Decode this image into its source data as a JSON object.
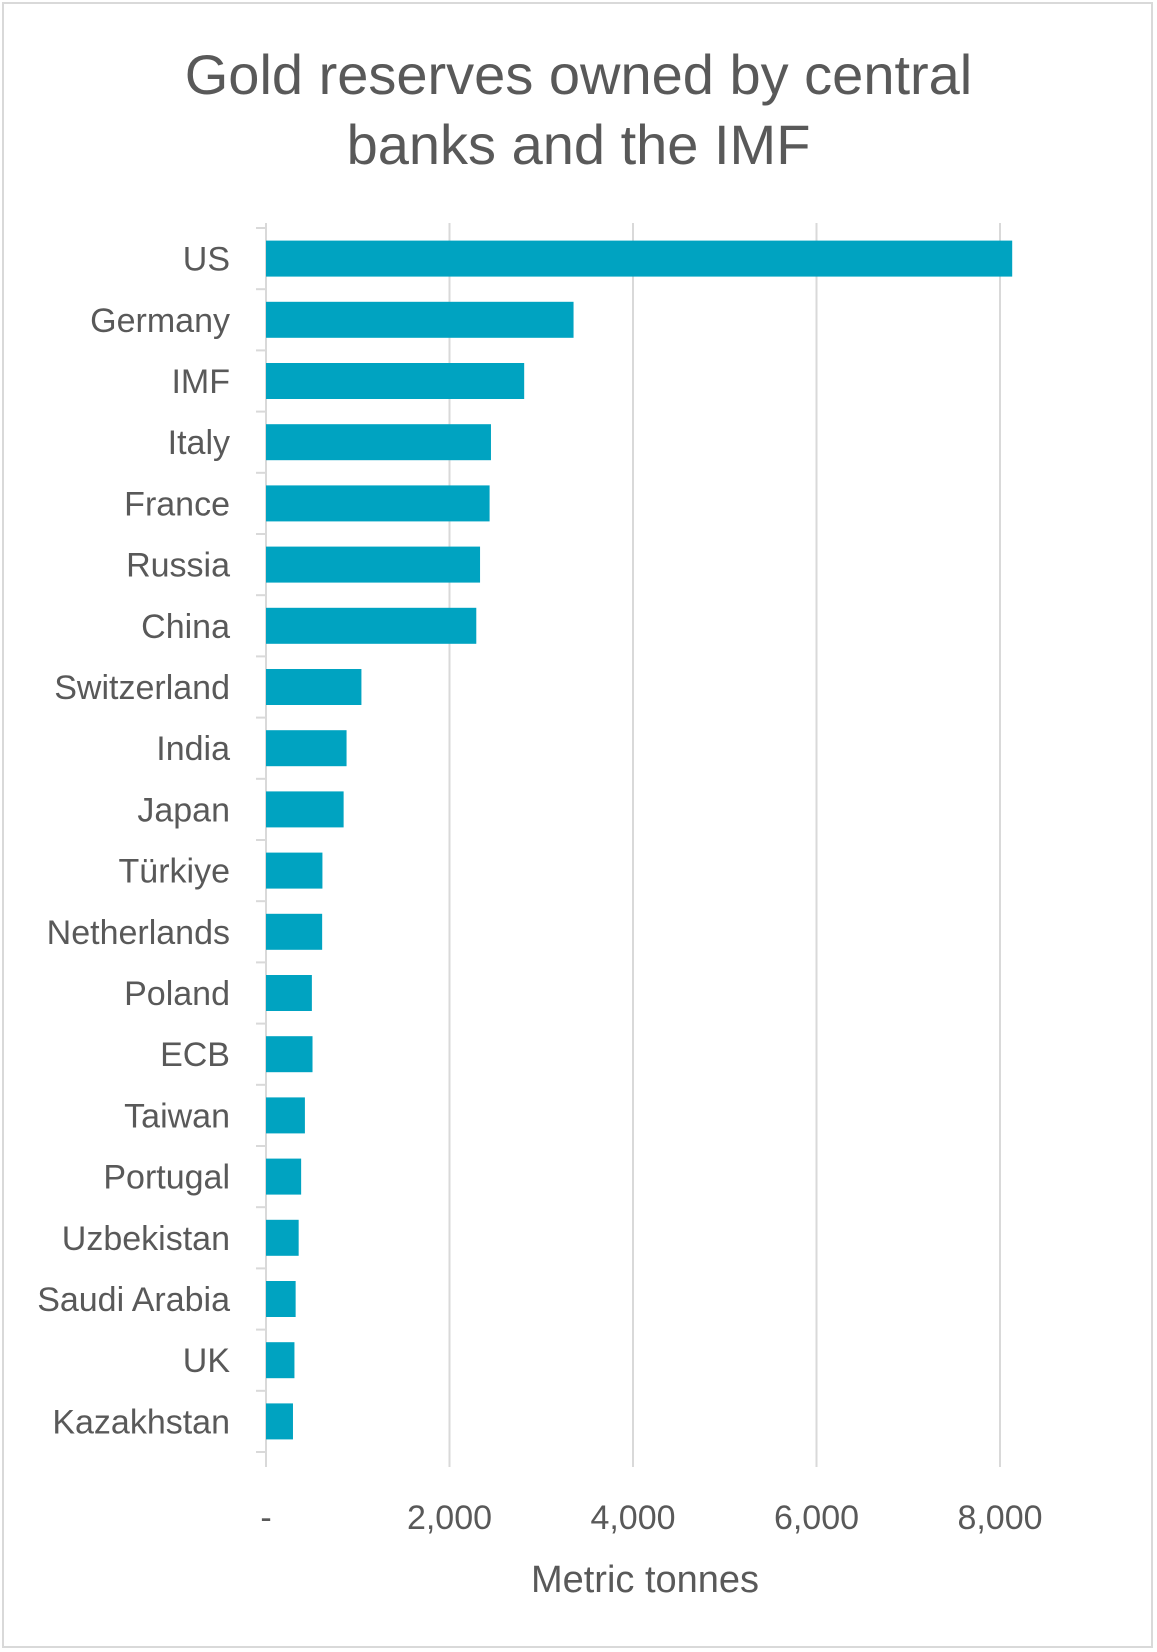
{
  "chart_data": {
    "type": "bar",
    "orientation": "horizontal",
    "title_lines": [
      "Gold reserves owned by central",
      "banks and the IMF"
    ],
    "xlabel": "Metric tonnes",
    "ylabel": "",
    "xlim": [
      0,
      8000
    ],
    "x_ticks": [
      0,
      2000,
      4000,
      6000,
      8000
    ],
    "x_tick_labels": [
      "-",
      "2,000",
      "4,000",
      "6,000",
      "8,000"
    ],
    "grid": "vertical",
    "bar_color": "#00A3C1",
    "categories": [
      "US",
      "Germany",
      "IMF",
      "Italy",
      "France",
      "Russia",
      "China",
      "Switzerland",
      "India",
      "Japan",
      "Türkiye",
      "Netherlands",
      "Poland",
      "ECB",
      "Taiwan",
      "Portugal",
      "Uzbekistan",
      "Saudi Arabia",
      "UK",
      "Kazakhstan"
    ],
    "values": [
      8133,
      3352,
      2814,
      2452,
      2437,
      2333,
      2292,
      1040,
      878,
      846,
      615,
      612,
      500,
      507,
      424,
      383,
      356,
      323,
      310,
      294
    ]
  }
}
